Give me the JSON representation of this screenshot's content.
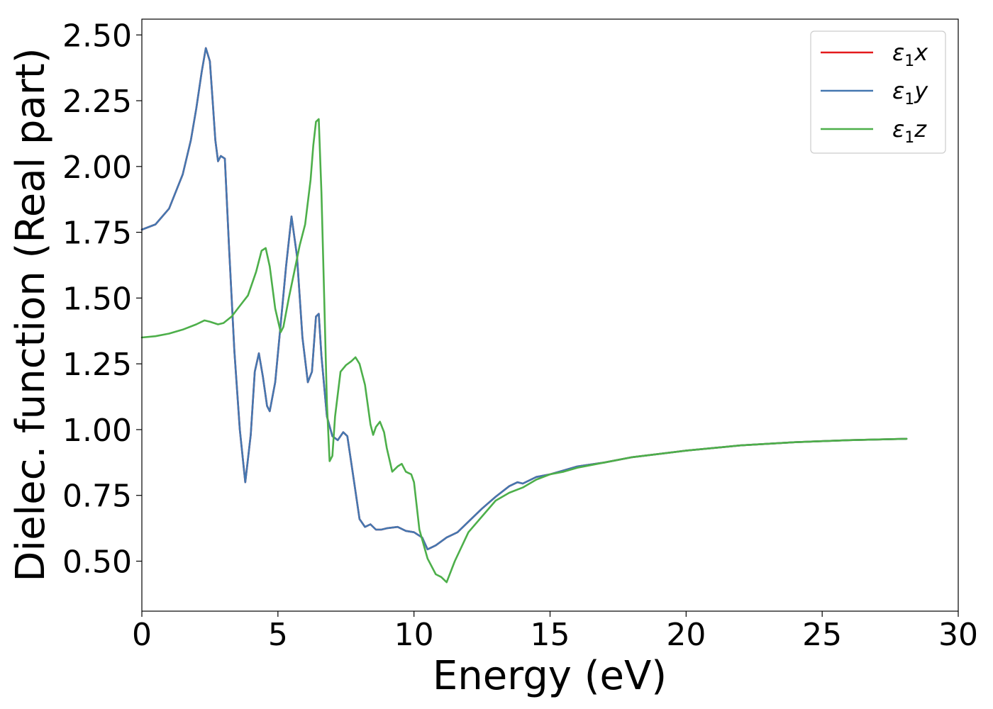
{
  "chart_data": {
    "type": "line",
    "xlabel": "Energy (eV)",
    "ylabel": "Dielec. function (Real part)",
    "xlim": [
      0,
      30
    ],
    "ylim": [
      0.31,
      2.56
    ],
    "xticks": [
      0,
      5,
      10,
      15,
      20,
      25,
      30
    ],
    "xtick_labels": [
      "0",
      "5",
      "10",
      "15",
      "20",
      "25",
      "30"
    ],
    "yticks": [
      0.5,
      0.75,
      1.0,
      1.25,
      1.5,
      1.75,
      2.0,
      2.25,
      2.5
    ],
    "ytick_labels": [
      "0.50",
      "0.75",
      "1.00",
      "1.25",
      "1.50",
      "1.75",
      "2.00",
      "2.25",
      "2.50"
    ],
    "grid": false,
    "legend_position": "top-right",
    "series": [
      {
        "name_sym": "ε",
        "name_sub": "1",
        "name_axis": "x",
        "color": "#e41a1c",
        "x": [
          0,
          0.5,
          1,
          1.5,
          1.8,
          2.0,
          2.2,
          2.35,
          2.5,
          2.6,
          2.7,
          2.8,
          2.9,
          3.05,
          3.2,
          3.4,
          3.6,
          3.8,
          4.0,
          4.15,
          4.3,
          4.45,
          4.6,
          4.7,
          4.9,
          5.1,
          5.3,
          5.5,
          5.7,
          5.9,
          6.1,
          6.25,
          6.4,
          6.5,
          6.6,
          6.8,
          7.0,
          7.2,
          7.4,
          7.55,
          7.8,
          8.0,
          8.2,
          8.4,
          8.6,
          8.8,
          9.0,
          9.4,
          9.7,
          10.0,
          10.3,
          10.5,
          10.8,
          11.2,
          11.6,
          12.0,
          12.5,
          13.0,
          13.5,
          13.8,
          14.0,
          14.5,
          15.0,
          15.5,
          16.0,
          17.0,
          18.0,
          20.0,
          22.0,
          24.0,
          26.0,
          28.1
        ],
        "y": [
          1.76,
          1.78,
          1.84,
          1.97,
          2.1,
          2.22,
          2.36,
          2.45,
          2.4,
          2.25,
          2.1,
          2.02,
          2.04,
          2.03,
          1.7,
          1.3,
          1.0,
          0.8,
          0.98,
          1.22,
          1.29,
          1.2,
          1.09,
          1.07,
          1.18,
          1.4,
          1.62,
          1.81,
          1.66,
          1.35,
          1.18,
          1.22,
          1.43,
          1.44,
          1.28,
          1.05,
          0.975,
          0.96,
          0.99,
          0.975,
          0.8,
          0.66,
          0.63,
          0.64,
          0.62,
          0.62,
          0.625,
          0.63,
          0.615,
          0.61,
          0.59,
          0.545,
          0.56,
          0.59,
          0.61,
          0.65,
          0.7,
          0.745,
          0.785,
          0.8,
          0.795,
          0.82,
          0.83,
          0.845,
          0.86,
          0.875,
          0.895,
          0.92,
          0.94,
          0.952,
          0.96,
          0.965
        ]
      },
      {
        "name_sym": "ε",
        "name_sub": "1",
        "name_axis": "y",
        "color": "#4477b0",
        "x": [
          0,
          0.5,
          1,
          1.5,
          1.8,
          2.0,
          2.2,
          2.35,
          2.5,
          2.6,
          2.7,
          2.8,
          2.9,
          3.05,
          3.2,
          3.4,
          3.6,
          3.8,
          4.0,
          4.15,
          4.3,
          4.45,
          4.6,
          4.7,
          4.9,
          5.1,
          5.3,
          5.5,
          5.7,
          5.9,
          6.1,
          6.25,
          6.4,
          6.5,
          6.6,
          6.8,
          7.0,
          7.2,
          7.4,
          7.55,
          7.8,
          8.0,
          8.2,
          8.4,
          8.6,
          8.8,
          9.0,
          9.4,
          9.7,
          10.0,
          10.3,
          10.5,
          10.8,
          11.2,
          11.6,
          12.0,
          12.5,
          13.0,
          13.5,
          13.8,
          14.0,
          14.5,
          15.0,
          15.5,
          16.0,
          17.0,
          18.0,
          20.0,
          22.0,
          24.0,
          26.0,
          28.1
        ],
        "y": [
          1.76,
          1.78,
          1.84,
          1.97,
          2.1,
          2.22,
          2.36,
          2.45,
          2.4,
          2.25,
          2.1,
          2.02,
          2.04,
          2.03,
          1.7,
          1.3,
          1.0,
          0.8,
          0.98,
          1.22,
          1.29,
          1.2,
          1.09,
          1.07,
          1.18,
          1.4,
          1.62,
          1.81,
          1.66,
          1.35,
          1.18,
          1.22,
          1.43,
          1.44,
          1.28,
          1.05,
          0.975,
          0.96,
          0.99,
          0.975,
          0.8,
          0.66,
          0.63,
          0.64,
          0.62,
          0.62,
          0.625,
          0.63,
          0.615,
          0.61,
          0.59,
          0.545,
          0.56,
          0.59,
          0.61,
          0.65,
          0.7,
          0.745,
          0.785,
          0.8,
          0.795,
          0.82,
          0.83,
          0.845,
          0.86,
          0.875,
          0.895,
          0.92,
          0.94,
          0.952,
          0.96,
          0.965
        ]
      },
      {
        "name_sym": "ε",
        "name_sub": "1",
        "name_axis": "z",
        "color": "#4daf4a",
        "x": [
          0,
          0.5,
          1.0,
          1.5,
          2.0,
          2.3,
          2.5,
          2.8,
          3.0,
          3.3,
          3.6,
          3.9,
          4.2,
          4.4,
          4.55,
          4.7,
          4.9,
          5.1,
          5.2,
          5.4,
          5.6,
          5.8,
          6.0,
          6.2,
          6.3,
          6.4,
          6.5,
          6.6,
          6.7,
          6.8,
          6.9,
          7.0,
          7.1,
          7.3,
          7.5,
          7.7,
          7.85,
          8.0,
          8.2,
          8.4,
          8.5,
          8.6,
          8.75,
          8.9,
          9.0,
          9.2,
          9.4,
          9.55,
          9.7,
          9.8,
          9.9,
          10.0,
          10.2,
          10.5,
          10.8,
          11.0,
          11.2,
          11.5,
          12.0,
          12.5,
          13.0,
          13.5,
          14.0,
          14.5,
          15.0,
          15.5,
          16.0,
          17.0,
          18.0,
          20.0,
          22.0,
          24.0,
          26.0,
          28.1
        ],
        "y": [
          1.35,
          1.355,
          1.365,
          1.38,
          1.4,
          1.415,
          1.41,
          1.4,
          1.405,
          1.43,
          1.47,
          1.51,
          1.6,
          1.68,
          1.69,
          1.62,
          1.46,
          1.37,
          1.39,
          1.5,
          1.6,
          1.7,
          1.78,
          1.95,
          2.08,
          2.17,
          2.18,
          1.9,
          1.5,
          1.1,
          0.88,
          0.9,
          1.05,
          1.22,
          1.245,
          1.26,
          1.275,
          1.25,
          1.17,
          1.02,
          0.98,
          1.01,
          1.03,
          0.99,
          0.93,
          0.84,
          0.86,
          0.87,
          0.84,
          0.835,
          0.83,
          0.8,
          0.62,
          0.51,
          0.45,
          0.44,
          0.42,
          0.5,
          0.61,
          0.67,
          0.73,
          0.76,
          0.78,
          0.81,
          0.83,
          0.84,
          0.855,
          0.875,
          0.895,
          0.92,
          0.94,
          0.952,
          0.96,
          0.965
        ]
      }
    ]
  }
}
